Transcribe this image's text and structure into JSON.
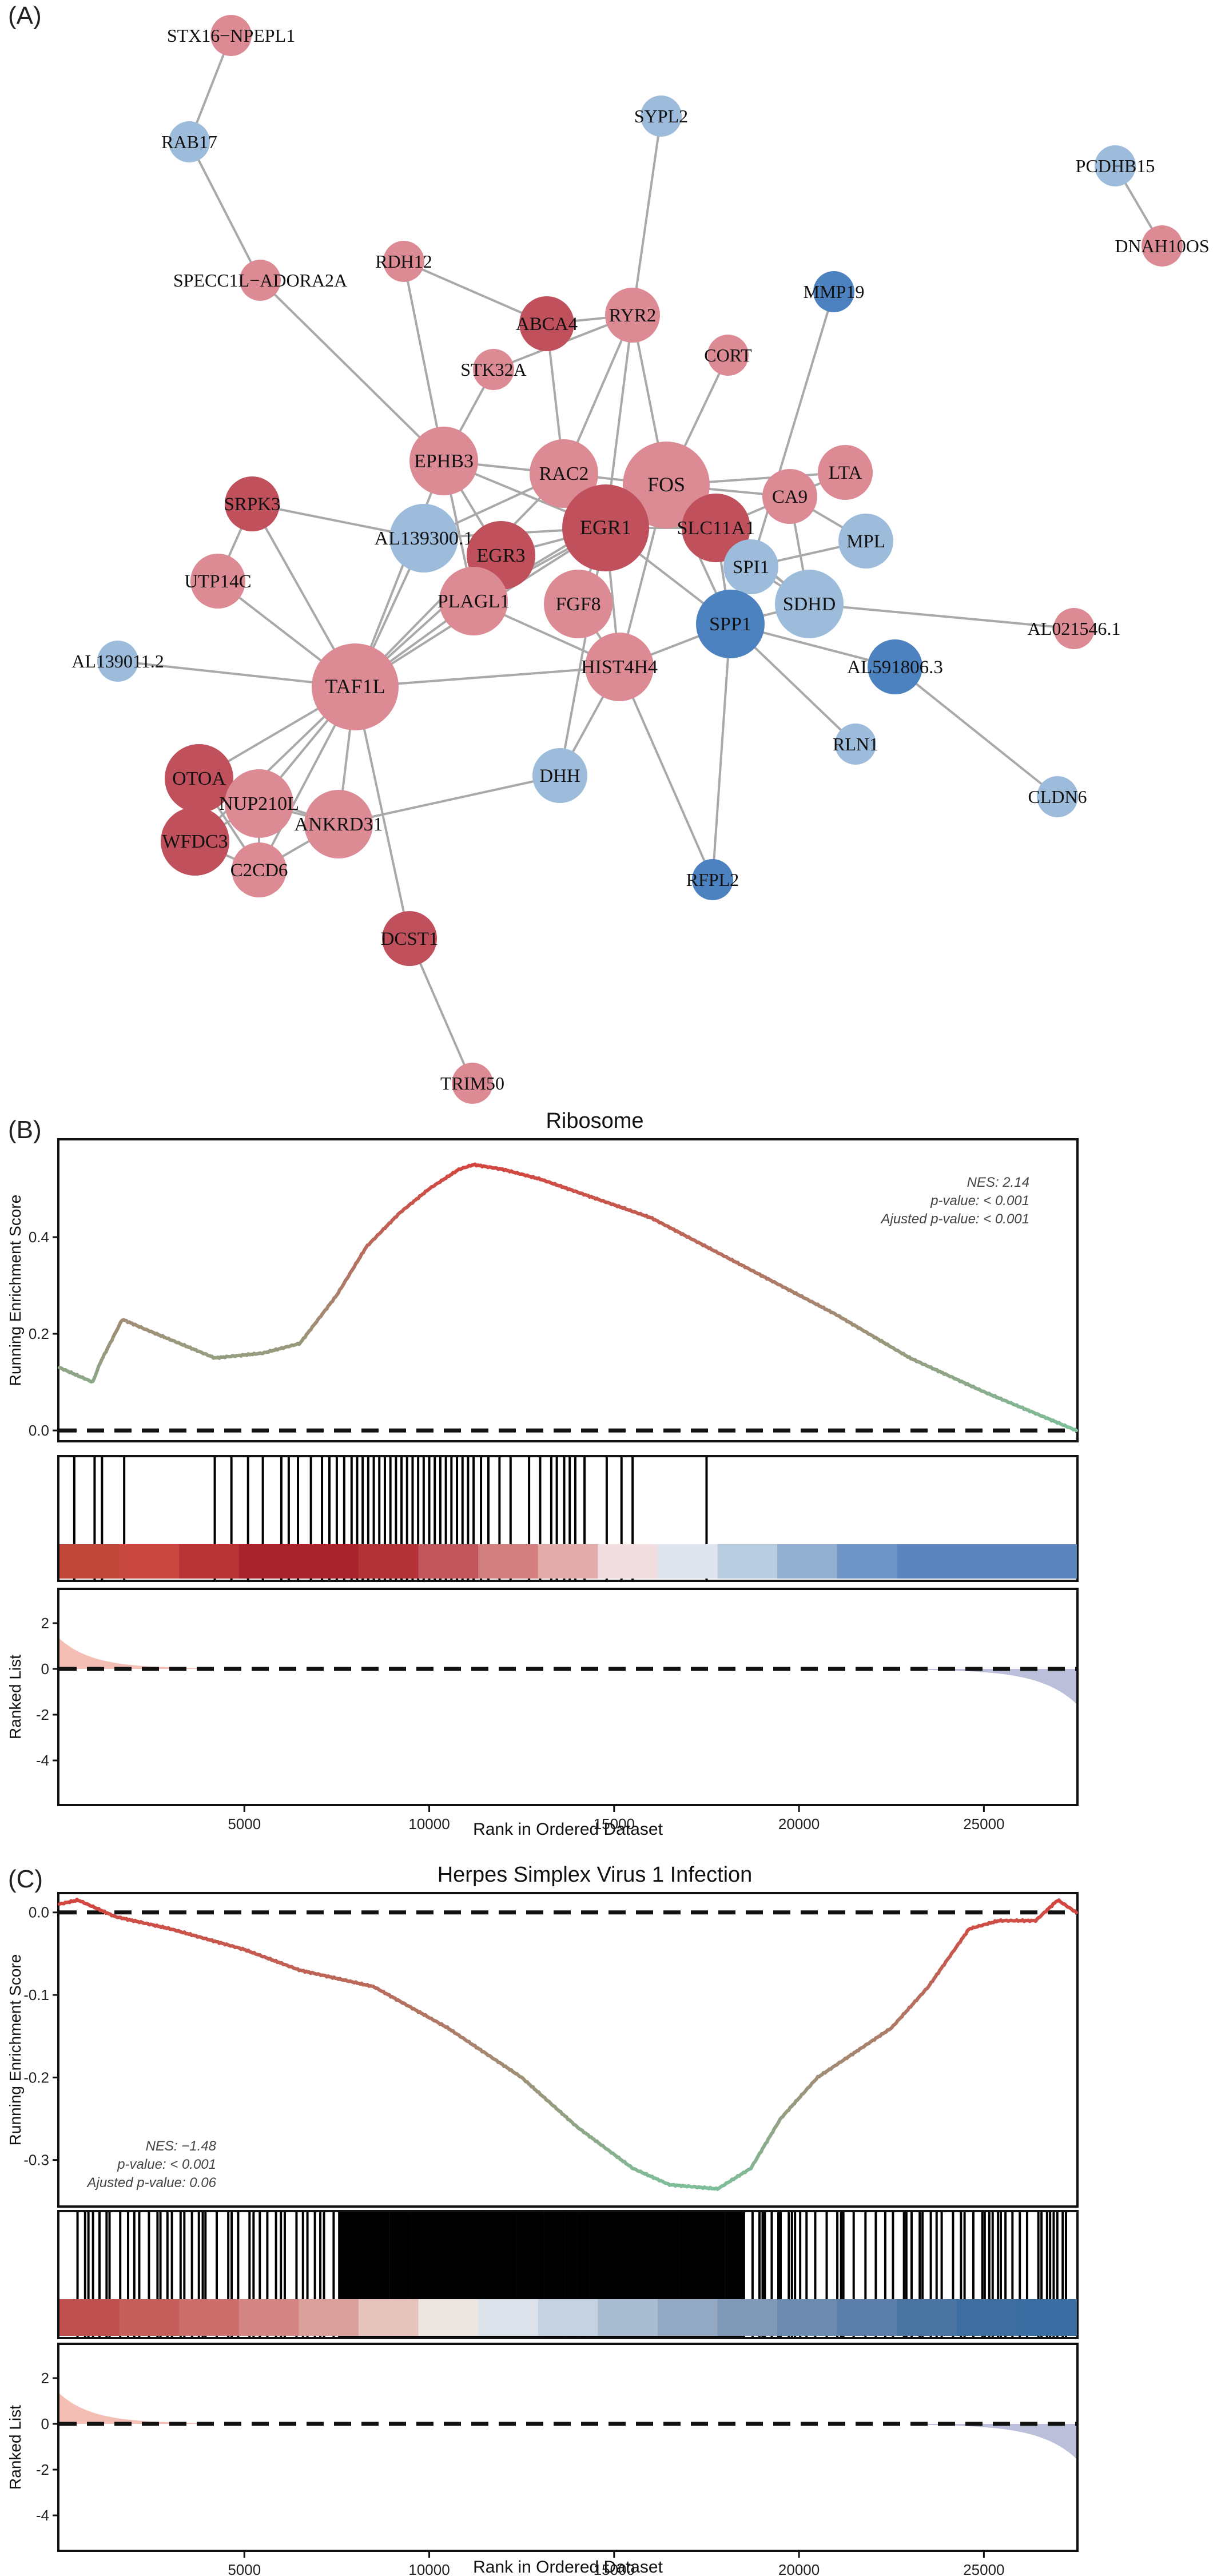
{
  "panels": {
    "a": "(A)",
    "b": "(B)",
    "c": "(C)"
  },
  "colors": {
    "red_dark": "#c0505c",
    "red_light": "#dc8a94",
    "blue_light": "#9dbcdc",
    "blue_dark": "#4c82bf",
    "edge": "#a9a9a9",
    "curve_red": "#d4453f",
    "curve_green": "#7dbf9a",
    "rank_pos": "#f2b3a8",
    "rank_neg": "#b4b8d6"
  },
  "chart_data": [
    {
      "type": "network",
      "panel": "(A)",
      "nodes": [
        {
          "id": "STX16−NPEPL1",
          "size": "small",
          "color": "red_light"
        },
        {
          "id": "RAB17",
          "size": "small",
          "color": "blue_light"
        },
        {
          "id": "SPECC1L−ADORA2A",
          "size": "small",
          "color": "red_light"
        },
        {
          "id": "SYPL2",
          "size": "small",
          "color": "blue_light"
        },
        {
          "id": "PCDHB15",
          "size": "small",
          "color": "blue_light"
        },
        {
          "id": "DNAH10OS",
          "size": "small",
          "color": "red_light"
        },
        {
          "id": "MMP19",
          "size": "small",
          "color": "blue_dark"
        },
        {
          "id": "RDH12",
          "size": "small",
          "color": "red_light"
        },
        {
          "id": "ABCA4",
          "size": "medium",
          "color": "red_dark"
        },
        {
          "id": "RYR2",
          "size": "medium",
          "color": "red_light"
        },
        {
          "id": "CORT",
          "size": "small",
          "color": "red_light"
        },
        {
          "id": "STK32A",
          "size": "small",
          "color": "red_light"
        },
        {
          "id": "EPHB3",
          "size": "large",
          "color": "red_light"
        },
        {
          "id": "RAC2",
          "size": "large",
          "color": "red_light"
        },
        {
          "id": "FOS",
          "size": "xlarge",
          "color": "red_light"
        },
        {
          "id": "LTA",
          "size": "medium",
          "color": "red_light"
        },
        {
          "id": "CA9",
          "size": "medium",
          "color": "red_light"
        },
        {
          "id": "SRPK3",
          "size": "medium",
          "color": "red_dark"
        },
        {
          "id": "EGR1",
          "size": "xlarge",
          "color": "red_dark"
        },
        {
          "id": "SLC11A1",
          "size": "large",
          "color": "red_dark"
        },
        {
          "id": "MPL",
          "size": "medium",
          "color": "blue_light"
        },
        {
          "id": "AL139300.1",
          "size": "large",
          "color": "blue_light"
        },
        {
          "id": "EGR3",
          "size": "large",
          "color": "red_dark"
        },
        {
          "id": "SPI1",
          "size": "medium",
          "color": "blue_light"
        },
        {
          "id": "UTP14C",
          "size": "medium",
          "color": "red_light"
        },
        {
          "id": "PLAGL1",
          "size": "large",
          "color": "red_light"
        },
        {
          "id": "FGF8",
          "size": "large",
          "color": "red_light"
        },
        {
          "id": "SDHD",
          "size": "large",
          "color": "blue_light"
        },
        {
          "id": "SPP1",
          "size": "large",
          "color": "blue_dark"
        },
        {
          "id": "AL021546.1",
          "size": "small",
          "color": "red_light"
        },
        {
          "id": "AL139011.2",
          "size": "small",
          "color": "blue_light"
        },
        {
          "id": "TAF1L",
          "size": "xlarge",
          "color": "red_light"
        },
        {
          "id": "HIST4H4",
          "size": "large",
          "color": "red_light"
        },
        {
          "id": "AL591806.3",
          "size": "medium",
          "color": "blue_dark"
        },
        {
          "id": "RLN1",
          "size": "small",
          "color": "blue_light"
        },
        {
          "id": "DHH",
          "size": "medium",
          "color": "blue_light"
        },
        {
          "id": "CLDN6",
          "size": "small",
          "color": "blue_light"
        },
        {
          "id": "OTOA",
          "size": "large",
          "color": "red_dark"
        },
        {
          "id": "NUP210L",
          "size": "large",
          "color": "red_light"
        },
        {
          "id": "WFDC3",
          "size": "large",
          "color": "red_dark"
        },
        {
          "id": "ANKRD31",
          "size": "large",
          "color": "red_light"
        },
        {
          "id": "C2CD6",
          "size": "medium",
          "color": "red_light"
        },
        {
          "id": "RFPL2",
          "size": "small",
          "color": "blue_dark"
        },
        {
          "id": "DCST1",
          "size": "medium",
          "color": "red_dark"
        },
        {
          "id": "TRIM50",
          "size": "small",
          "color": "red_light"
        }
      ],
      "edges": [
        [
          "STX16−NPEPL1",
          "RAB17"
        ],
        [
          "RAB17",
          "SPECC1L−ADORA2A"
        ],
        [
          "SPECC1L−ADORA2A",
          "EPHB3"
        ],
        [
          "PCDHB15",
          "DNAH10OS"
        ],
        [
          "RDH12",
          "EPHB3"
        ],
        [
          "RDH12",
          "ABCA4"
        ],
        [
          "ABCA4",
          "RYR2"
        ],
        [
          "ABCA4",
          "RAC2"
        ],
        [
          "SYPL2",
          "RYR2"
        ],
        [
          "RYR2",
          "STK32A"
        ],
        [
          "RYR2",
          "RAC2"
        ],
        [
          "RYR2",
          "EGR1"
        ],
        [
          "RYR2",
          "FOS"
        ],
        [
          "CORT",
          "FOS"
        ],
        [
          "MMP19",
          "SPI1"
        ],
        [
          "STK32A",
          "EPHB3"
        ],
        [
          "EPHB3",
          "RAC2"
        ],
        [
          "EPHB3",
          "EGR1"
        ],
        [
          "EPHB3",
          "TAF1L"
        ],
        [
          "EPHB3",
          "EGR3"
        ],
        [
          "EPHB3",
          "PLAGL1"
        ],
        [
          "RAC2",
          "FOS"
        ],
        [
          "RAC2",
          "EGR1"
        ],
        [
          "RAC2",
          "AL139300.1"
        ],
        [
          "RAC2",
          "TAF1L"
        ],
        [
          "FOS",
          "EGR1"
        ],
        [
          "FOS",
          "SLC11A1"
        ],
        [
          "FOS",
          "CA9"
        ],
        [
          "FOS",
          "LTA"
        ],
        [
          "FOS",
          "SPI1"
        ],
        [
          "FOS",
          "HIST4H4"
        ],
        [
          "FOS",
          "PLAGL1"
        ],
        [
          "FOS",
          "SPP1"
        ],
        [
          "FOS",
          "SDHD"
        ],
        [
          "EGR1",
          "SLC11A1"
        ],
        [
          "EGR1",
          "EGR3"
        ],
        [
          "EGR1",
          "FGF8"
        ],
        [
          "EGR1",
          "PLAGL1"
        ],
        [
          "EGR1",
          "HIST4H4"
        ],
        [
          "EGR1",
          "TAF1L"
        ],
        [
          "EGR1",
          "DHH"
        ],
        [
          "EGR1",
          "SPP1"
        ],
        [
          "SLC11A1",
          "SPI1"
        ],
        [
          "SLC11A1",
          "CA9"
        ],
        [
          "SLC11A1",
          "SDHD"
        ],
        [
          "SLC11A1",
          "SPP1"
        ],
        [
          "CA9",
          "LTA"
        ],
        [
          "CA9",
          "SDHD"
        ],
        [
          "CA9",
          "MPL"
        ],
        [
          "MPL",
          "SPI1"
        ],
        [
          "SRPK3",
          "AL139300.1"
        ],
        [
          "SRPK3",
          "TAF1L"
        ],
        [
          "SRPK3",
          "UTP14C"
        ],
        [
          "AL139300.1",
          "EGR1"
        ],
        [
          "AL139300.1",
          "TAF1L"
        ],
        [
          "EGR3",
          "TAF1L"
        ],
        [
          "EGR3",
          "PLAGL1"
        ],
        [
          "PLAGL1",
          "TAF1L"
        ],
        [
          "PLAGL1",
          "HIST4H4"
        ],
        [
          "FGF8",
          "HIST4H4"
        ],
        [
          "SPI1",
          "SPP1"
        ],
        [
          "SPI1",
          "SDHD"
        ],
        [
          "SDHD",
          "SPP1"
        ],
        [
          "SDHD",
          "AL021546.1"
        ],
        [
          "SPP1",
          "HIST4H4"
        ],
        [
          "SPP1",
          "AL591806.3"
        ],
        [
          "SPP1",
          "RLN1"
        ],
        [
          "SPP1",
          "RFPL2"
        ],
        [
          "AL591806.3",
          "CLDN6"
        ],
        [
          "HIST4H4",
          "TAF1L"
        ],
        [
          "HIST4H4",
          "RFPL2"
        ],
        [
          "AL139011.2",
          "TAF1L"
        ],
        [
          "UTP14C",
          "TAF1L"
        ],
        [
          "TAF1L",
          "OTOA"
        ],
        [
          "TAF1L",
          "NUP210L"
        ],
        [
          "TAF1L",
          "WFDC3"
        ],
        [
          "TAF1L",
          "ANKRD31"
        ],
        [
          "TAF1L",
          "C2CD6"
        ],
        [
          "TAF1L",
          "DCST1"
        ],
        [
          "OTOA",
          "NUP210L"
        ],
        [
          "OTOA",
          "WFDC3"
        ],
        [
          "OTOA",
          "C2CD6"
        ],
        [
          "OTOA",
          "ANKRD31"
        ],
        [
          "NUP210L",
          "WFDC3"
        ],
        [
          "NUP210L",
          "C2CD6"
        ],
        [
          "NUP210L",
          "ANKRD31"
        ],
        [
          "WFDC3",
          "C2CD6"
        ],
        [
          "C2CD6",
          "ANKRD31"
        ],
        [
          "ANKRD31",
          "DHH"
        ],
        [
          "DCST1",
          "TRIM50"
        ],
        [
          "DHH",
          "HIST4H4"
        ]
      ]
    },
    {
      "type": "line",
      "panel": "(B)",
      "title": "Ribosome",
      "ylabel_top": "Running Enrichment Score",
      "ylabel_bottom": "Ranked List",
      "xlabel": "Rank in Ordered Dataset",
      "xlim": [
        0,
        27500
      ],
      "ylim": [
        -0.02,
        0.6
      ],
      "yticks": [
        0.0,
        0.2,
        0.4
      ],
      "xticks": [
        5000,
        10000,
        15000,
        20000,
        25000
      ],
      "rank_yticks": [
        2,
        0,
        -2,
        -4
      ],
      "stats": {
        "nes": "NES: 2.14",
        "pvalue": "p-value: < 0.001",
        "adj_pvalue": "Ajusted p-value: < 0.001"
      },
      "curve": [
        [
          0,
          0.13
        ],
        [
          900,
          0.1
        ],
        [
          1100,
          0.14
        ],
        [
          1700,
          0.23
        ],
        [
          2300,
          0.21
        ],
        [
          4200,
          0.15
        ],
        [
          5500,
          0.16
        ],
        [
          6500,
          0.18
        ],
        [
          7500,
          0.28
        ],
        [
          8300,
          0.38
        ],
        [
          9200,
          0.45
        ],
        [
          10000,
          0.5
        ],
        [
          10800,
          0.54
        ],
        [
          11200,
          0.55
        ],
        [
          12000,
          0.54
        ],
        [
          13000,
          0.52
        ],
        [
          14500,
          0.48
        ],
        [
          16000,
          0.44
        ],
        [
          17500,
          0.38
        ],
        [
          19000,
          0.32
        ],
        [
          21000,
          0.24
        ],
        [
          23000,
          0.15
        ],
        [
          25000,
          0.08
        ],
        [
          27500,
          0.0
        ]
      ],
      "hits": [
        400,
        950,
        1150,
        1750,
        4200,
        4650,
        5100,
        5500,
        6000,
        6200,
        6450,
        6800,
        7100,
        7300,
        7500,
        7700,
        7900,
        8050,
        8200,
        8350,
        8500,
        8650,
        8800,
        8950,
        9100,
        9250,
        9400,
        9550,
        9700,
        9850,
        10000,
        10150,
        10300,
        10450,
        10600,
        10750,
        10900,
        11050,
        11200,
        11400,
        11600,
        11900,
        12200,
        12700,
        13000,
        13300,
        13450,
        13650,
        13800,
        13950,
        14200,
        14800,
        15200,
        15500,
        17500
      ],
      "strip_colors": [
        "#c0473a",
        "#c8473f",
        "#b73534",
        "#a8242c",
        "#a8242c",
        "#b33236",
        "#c0555a",
        "#d37f80",
        "#e4abab",
        "#f2dde0",
        "#dfe5ee",
        "#b9cde1",
        "#93b0d2",
        "#6f94c6",
        "#5c85c0",
        "#5c85c0",
        "#5c85c0"
      ],
      "rank_start": 1.3,
      "rank_end": -1.5
    },
    {
      "type": "line",
      "panel": "(C)",
      "title": "Herpes Simplex Virus 1 Infection",
      "ylabel_top": "Running Enrichment Score",
      "ylabel_bottom": "Ranked List",
      "xlabel": "Rank in Ordered Dataset",
      "xlim": [
        0,
        27500
      ],
      "ylim": [
        -0.355,
        0.022
      ],
      "yticks": [
        0.0,
        -0.1,
        -0.2,
        -0.3
      ],
      "xticks": [
        5000,
        10000,
        15000,
        20000,
        25000
      ],
      "rank_yticks": [
        2,
        0,
        -2,
        -4
      ],
      "stats": {
        "nes": "NES: −1.48",
        "pvalue": "p-value: < 0.001",
        "adj_pvalue": "Ajusted p-value: 0.06"
      },
      "curve": [
        [
          0,
          0.01
        ],
        [
          500,
          0.015
        ],
        [
          1500,
          -0.005
        ],
        [
          3000,
          -0.02
        ],
        [
          5000,
          -0.045
        ],
        [
          6500,
          -0.07
        ],
        [
          8500,
          -0.09
        ],
        [
          10500,
          -0.14
        ],
        [
          12500,
          -0.2
        ],
        [
          14000,
          -0.26
        ],
        [
          15500,
          -0.31
        ],
        [
          16500,
          -0.33
        ],
        [
          17800,
          -0.335
        ],
        [
          18700,
          -0.31
        ],
        [
          19500,
          -0.25
        ],
        [
          20500,
          -0.2
        ],
        [
          21500,
          -0.17
        ],
        [
          22500,
          -0.14
        ],
        [
          23500,
          -0.09
        ],
        [
          24600,
          -0.02
        ],
        [
          25400,
          -0.01
        ],
        [
          26400,
          -0.01
        ],
        [
          27000,
          0.015
        ],
        [
          27500,
          0.0
        ]
      ],
      "hits_density": "dense",
      "strip_colors": [
        "#c0504f",
        "#c65e5c",
        "#cc6f6c",
        "#d38683",
        "#dba09b",
        "#e6c3bd",
        "#eee6e3",
        "#dde3ea",
        "#c4d2e2",
        "#a9bcd2",
        "#93a9c3",
        "#7f99b8",
        "#6d8bae",
        "#5b7fa8",
        "#4a75a2",
        "#3d6e9f",
        "#3a6ea3"
      ],
      "rank_start": 1.3,
      "rank_end": -1.5
    }
  ]
}
